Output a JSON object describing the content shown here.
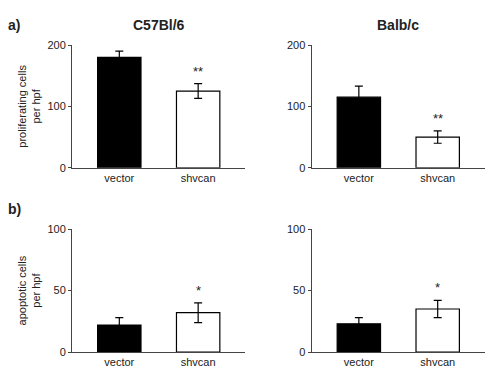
{
  "chart_data": [
    {
      "type": "bar",
      "title": "C57Bl/6",
      "ylabel": "proliferating cells\nper hpf",
      "categories": [
        "vector",
        "shvcan"
      ],
      "values": [
        180,
        125
      ],
      "errors": [
        10,
        12
      ],
      "colors": [
        "black",
        "white"
      ],
      "ylim": [
        0,
        200
      ],
      "yticks": [
        0,
        100,
        200
      ],
      "grid": false,
      "annotations": [
        {
          "text": "a)"
        },
        {
          "x": "shvcan",
          "text": "**"
        }
      ]
    },
    {
      "type": "bar",
      "title": "Balb/c",
      "categories": [
        "vector",
        "shvcan"
      ],
      "values": [
        115,
        50
      ],
      "errors": [
        18,
        10
      ],
      "colors": [
        "black",
        "white"
      ],
      "ylim": [
        0,
        200
      ],
      "yticks": [
        0,
        100,
        200
      ],
      "grid": false,
      "annotations": [
        {
          "x": "shvcan",
          "text": "**"
        }
      ]
    },
    {
      "type": "bar",
      "ylabel": "apoptotic cells\nper hpf",
      "categories": [
        "vector",
        "shvcan"
      ],
      "values": [
        22,
        32
      ],
      "errors": [
        6,
        8
      ],
      "colors": [
        "black",
        "white"
      ],
      "ylim": [
        0,
        100
      ],
      "yticks": [
        0,
        50,
        100
      ],
      "grid": false,
      "annotations": [
        {
          "text": "b)"
        },
        {
          "x": "shvcan",
          "text": "*"
        }
      ]
    },
    {
      "type": "bar",
      "categories": [
        "vector",
        "shvcan"
      ],
      "values": [
        23,
        35
      ],
      "errors": [
        5,
        7
      ],
      "colors": [
        "black",
        "white"
      ],
      "ylim": [
        0,
        100
      ],
      "yticks": [
        0,
        50,
        100
      ],
      "grid": false,
      "annotations": [
        {
          "x": "shvcan",
          "text": "*"
        }
      ]
    }
  ]
}
